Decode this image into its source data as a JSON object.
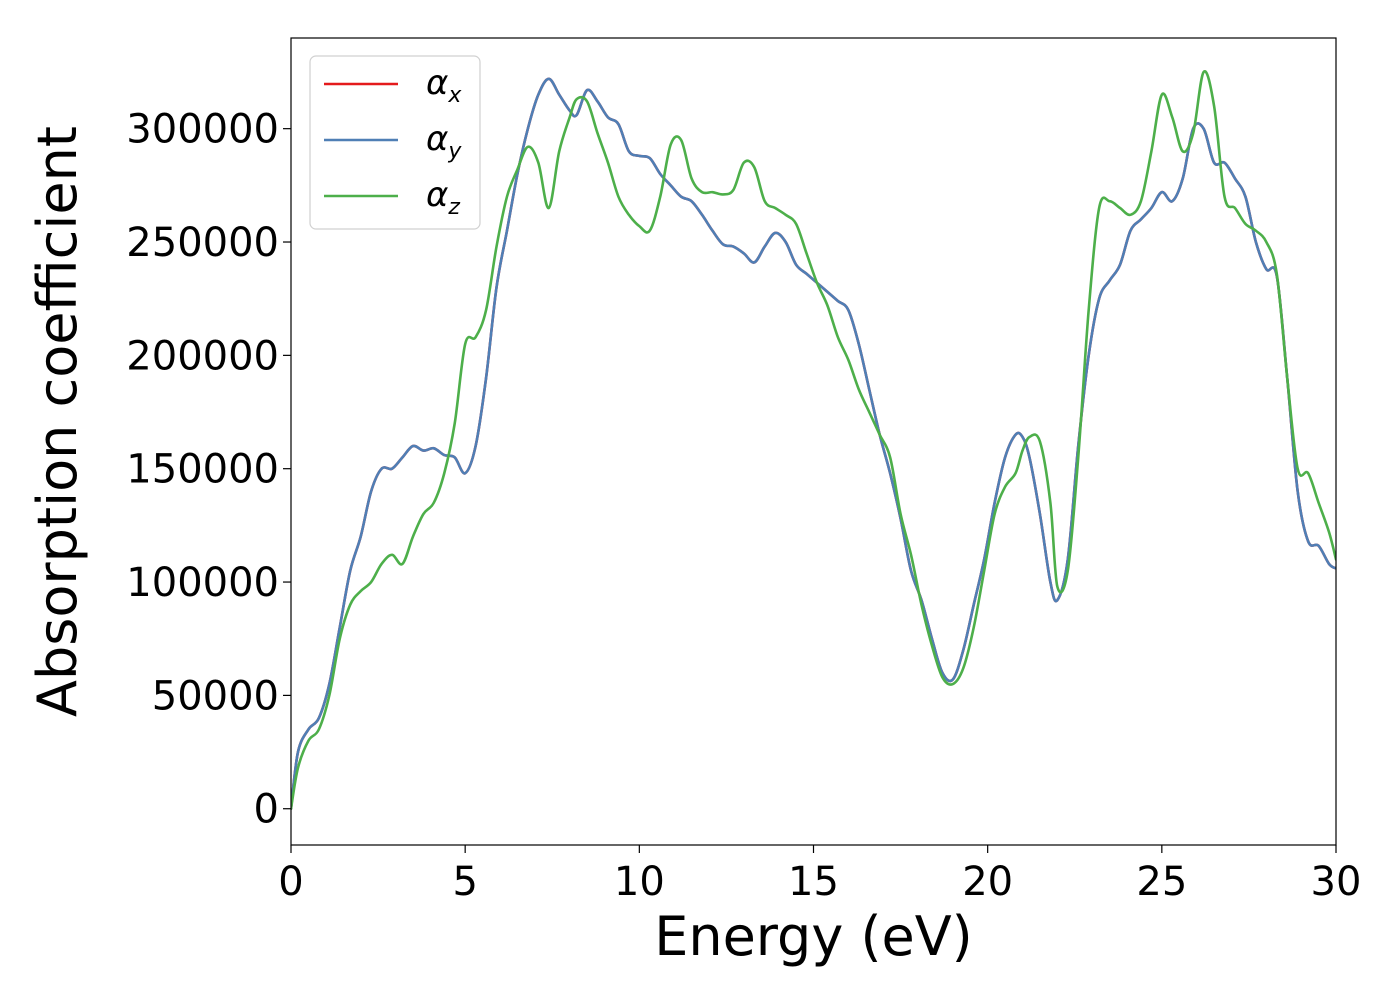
{
  "chart_data": {
    "type": "line",
    "xlabel": "Energy (eV)",
    "ylabel": "Absorption coefficient",
    "xlim": [
      0,
      30
    ],
    "ylim": [
      -16000,
      340000
    ],
    "x_ticks": [
      0,
      5,
      10,
      15,
      20,
      25,
      30
    ],
    "y_ticks": [
      0,
      50000,
      100000,
      150000,
      200000,
      250000,
      300000
    ],
    "grid": false,
    "legend_position": "top-left",
    "series": [
      {
        "name": "α_x",
        "legend_base": "α",
        "legend_sub": "x",
        "color": "#e41a1c",
        "x": [
          0,
          0.2,
          0.5,
          0.8,
          1.1,
          1.4,
          1.7,
          2.0,
          2.3,
          2.6,
          2.9,
          3.2,
          3.5,
          3.8,
          4.1,
          4.4,
          4.7,
          5.0,
          5.3,
          5.6,
          5.9,
          6.2,
          6.5,
          6.8,
          7.1,
          7.4,
          7.7,
          8.0,
          8.2,
          8.5,
          8.8,
          9.1,
          9.4,
          9.7,
          10.0,
          10.3,
          10.6,
          10.9,
          11.2,
          11.5,
          11.8,
          12.1,
          12.4,
          12.7,
          13.0,
          13.3,
          13.6,
          13.9,
          14.2,
          14.5,
          14.8,
          15.1,
          15.4,
          15.7,
          16.0,
          16.3,
          16.6,
          16.9,
          17.2,
          17.5,
          17.8,
          18.1,
          18.4,
          18.7,
          19.0,
          19.3,
          19.6,
          19.9,
          20.2,
          20.5,
          20.8,
          21.0,
          21.2,
          21.5,
          21.8,
          22.0,
          22.3,
          22.6,
          22.9,
          23.2,
          23.5,
          23.8,
          24.1,
          24.4,
          24.7,
          25.0,
          25.3,
          25.6,
          25.9,
          26.2,
          26.5,
          26.8,
          27.1,
          27.4,
          27.7,
          28.0,
          28.3,
          28.6,
          28.9,
          29.2,
          29.5,
          29.8,
          30.0
        ],
        "values": [
          0,
          25000,
          35000,
          40000,
          55000,
          80000,
          105000,
          120000,
          140000,
          150000,
          150000,
          155000,
          160000,
          158000,
          159000,
          156000,
          155000,
          148000,
          160000,
          190000,
          230000,
          255000,
          280000,
          300000,
          315000,
          322000,
          315000,
          308000,
          306000,
          317000,
          312000,
          305000,
          302000,
          290000,
          288000,
          287000,
          280000,
          275000,
          270000,
          268000,
          262000,
          255000,
          249000,
          248000,
          245000,
          241000,
          248000,
          254000,
          250000,
          240000,
          236000,
          232000,
          228000,
          224000,
          220000,
          205000,
          185000,
          165000,
          148000,
          128000,
          105000,
          92000,
          75000,
          60000,
          57000,
          70000,
          90000,
          110000,
          135000,
          155000,
          165000,
          164000,
          155000,
          130000,
          100000,
          92000,
          110000,
          160000,
          200000,
          225000,
          233000,
          240000,
          255000,
          260000,
          265000,
          272000,
          268000,
          278000,
          300000,
          300000,
          285000,
          285000,
          278000,
          270000,
          250000,
          238000,
          235000,
          190000,
          140000,
          118000,
          116000,
          108000,
          106000
        ]
      },
      {
        "name": "α_y",
        "legend_base": "α",
        "legend_sub": "y",
        "color": "#4f7fb5",
        "x": [
          0,
          0.2,
          0.5,
          0.8,
          1.1,
          1.4,
          1.7,
          2.0,
          2.3,
          2.6,
          2.9,
          3.2,
          3.5,
          3.8,
          4.1,
          4.4,
          4.7,
          5.0,
          5.3,
          5.6,
          5.9,
          6.2,
          6.5,
          6.8,
          7.1,
          7.4,
          7.7,
          8.0,
          8.2,
          8.5,
          8.8,
          9.1,
          9.4,
          9.7,
          10.0,
          10.3,
          10.6,
          10.9,
          11.2,
          11.5,
          11.8,
          12.1,
          12.4,
          12.7,
          13.0,
          13.3,
          13.6,
          13.9,
          14.2,
          14.5,
          14.8,
          15.1,
          15.4,
          15.7,
          16.0,
          16.3,
          16.6,
          16.9,
          17.2,
          17.5,
          17.8,
          18.1,
          18.4,
          18.7,
          19.0,
          19.3,
          19.6,
          19.9,
          20.2,
          20.5,
          20.8,
          21.0,
          21.2,
          21.5,
          21.8,
          22.0,
          22.3,
          22.6,
          22.9,
          23.2,
          23.5,
          23.8,
          24.1,
          24.4,
          24.7,
          25.0,
          25.3,
          25.6,
          25.9,
          26.2,
          26.5,
          26.8,
          27.1,
          27.4,
          27.7,
          28.0,
          28.3,
          28.6,
          28.9,
          29.2,
          29.5,
          29.8,
          30.0
        ],
        "values": [
          0,
          25000,
          35000,
          40000,
          55000,
          80000,
          105000,
          120000,
          140000,
          150000,
          150000,
          155000,
          160000,
          158000,
          159000,
          156000,
          155000,
          148000,
          160000,
          190000,
          230000,
          255000,
          280000,
          300000,
          315000,
          322000,
          315000,
          308000,
          306000,
          317000,
          312000,
          305000,
          302000,
          290000,
          288000,
          287000,
          280000,
          275000,
          270000,
          268000,
          262000,
          255000,
          249000,
          248000,
          245000,
          241000,
          248000,
          254000,
          250000,
          240000,
          236000,
          232000,
          228000,
          224000,
          220000,
          205000,
          185000,
          165000,
          148000,
          128000,
          105000,
          92000,
          75000,
          60000,
          57000,
          70000,
          90000,
          110000,
          135000,
          155000,
          165000,
          164000,
          155000,
          130000,
          100000,
          92000,
          110000,
          160000,
          200000,
          225000,
          233000,
          240000,
          255000,
          260000,
          265000,
          272000,
          268000,
          278000,
          300000,
          300000,
          285000,
          285000,
          278000,
          270000,
          250000,
          238000,
          235000,
          190000,
          140000,
          118000,
          116000,
          108000,
          106000
        ]
      },
      {
        "name": "α_z",
        "legend_base": "α",
        "legend_sub": "z",
        "color": "#4daf4a",
        "x": [
          0,
          0.2,
          0.5,
          0.8,
          1.1,
          1.4,
          1.7,
          2.0,
          2.3,
          2.6,
          2.9,
          3.2,
          3.5,
          3.8,
          4.1,
          4.4,
          4.7,
          5.0,
          5.3,
          5.6,
          5.9,
          6.2,
          6.5,
          6.8,
          7.1,
          7.4,
          7.7,
          8.0,
          8.2,
          8.5,
          8.8,
          9.1,
          9.4,
          9.7,
          10.0,
          10.3,
          10.6,
          10.9,
          11.2,
          11.5,
          11.8,
          12.1,
          12.4,
          12.7,
          13.0,
          13.3,
          13.6,
          13.9,
          14.2,
          14.5,
          14.8,
          15.1,
          15.4,
          15.7,
          16.0,
          16.3,
          16.6,
          16.9,
          17.2,
          17.5,
          17.8,
          18.1,
          18.4,
          18.7,
          19.0,
          19.3,
          19.6,
          19.9,
          20.2,
          20.5,
          20.8,
          21.0,
          21.2,
          21.5,
          21.8,
          22.0,
          22.3,
          22.6,
          22.9,
          23.2,
          23.5,
          23.8,
          24.1,
          24.4,
          24.7,
          25.0,
          25.3,
          25.6,
          25.9,
          26.2,
          26.5,
          26.8,
          27.1,
          27.4,
          27.7,
          28.0,
          28.3,
          28.6,
          28.9,
          29.2,
          29.5,
          29.8,
          30.0
        ],
        "values": [
          0,
          18000,
          30000,
          35000,
          50000,
          75000,
          90000,
          96000,
          100000,
          108000,
          112000,
          108000,
          120000,
          130000,
          135000,
          148000,
          170000,
          205000,
          208000,
          220000,
          248000,
          270000,
          282000,
          292000,
          285000,
          265000,
          290000,
          305000,
          313000,
          312000,
          298000,
          285000,
          270000,
          262000,
          257000,
          255000,
          270000,
          293000,
          295000,
          278000,
          272000,
          272000,
          271000,
          273000,
          285000,
          283000,
          268000,
          265000,
          262000,
          258000,
          245000,
          232000,
          222000,
          208000,
          198000,
          185000,
          175000,
          165000,
          155000,
          130000,
          112000,
          90000,
          72000,
          58000,
          55000,
          62000,
          80000,
          105000,
          130000,
          142000,
          148000,
          158000,
          164000,
          162000,
          135000,
          98000,
          105000,
          155000,
          220000,
          265000,
          268000,
          265000,
          262000,
          268000,
          290000,
          315000,
          305000,
          290000,
          298000,
          325000,
          310000,
          270000,
          265000,
          258000,
          255000,
          250000,
          236000,
          190000,
          150000,
          148000,
          135000,
          122000,
          110000
        ]
      }
    ]
  }
}
